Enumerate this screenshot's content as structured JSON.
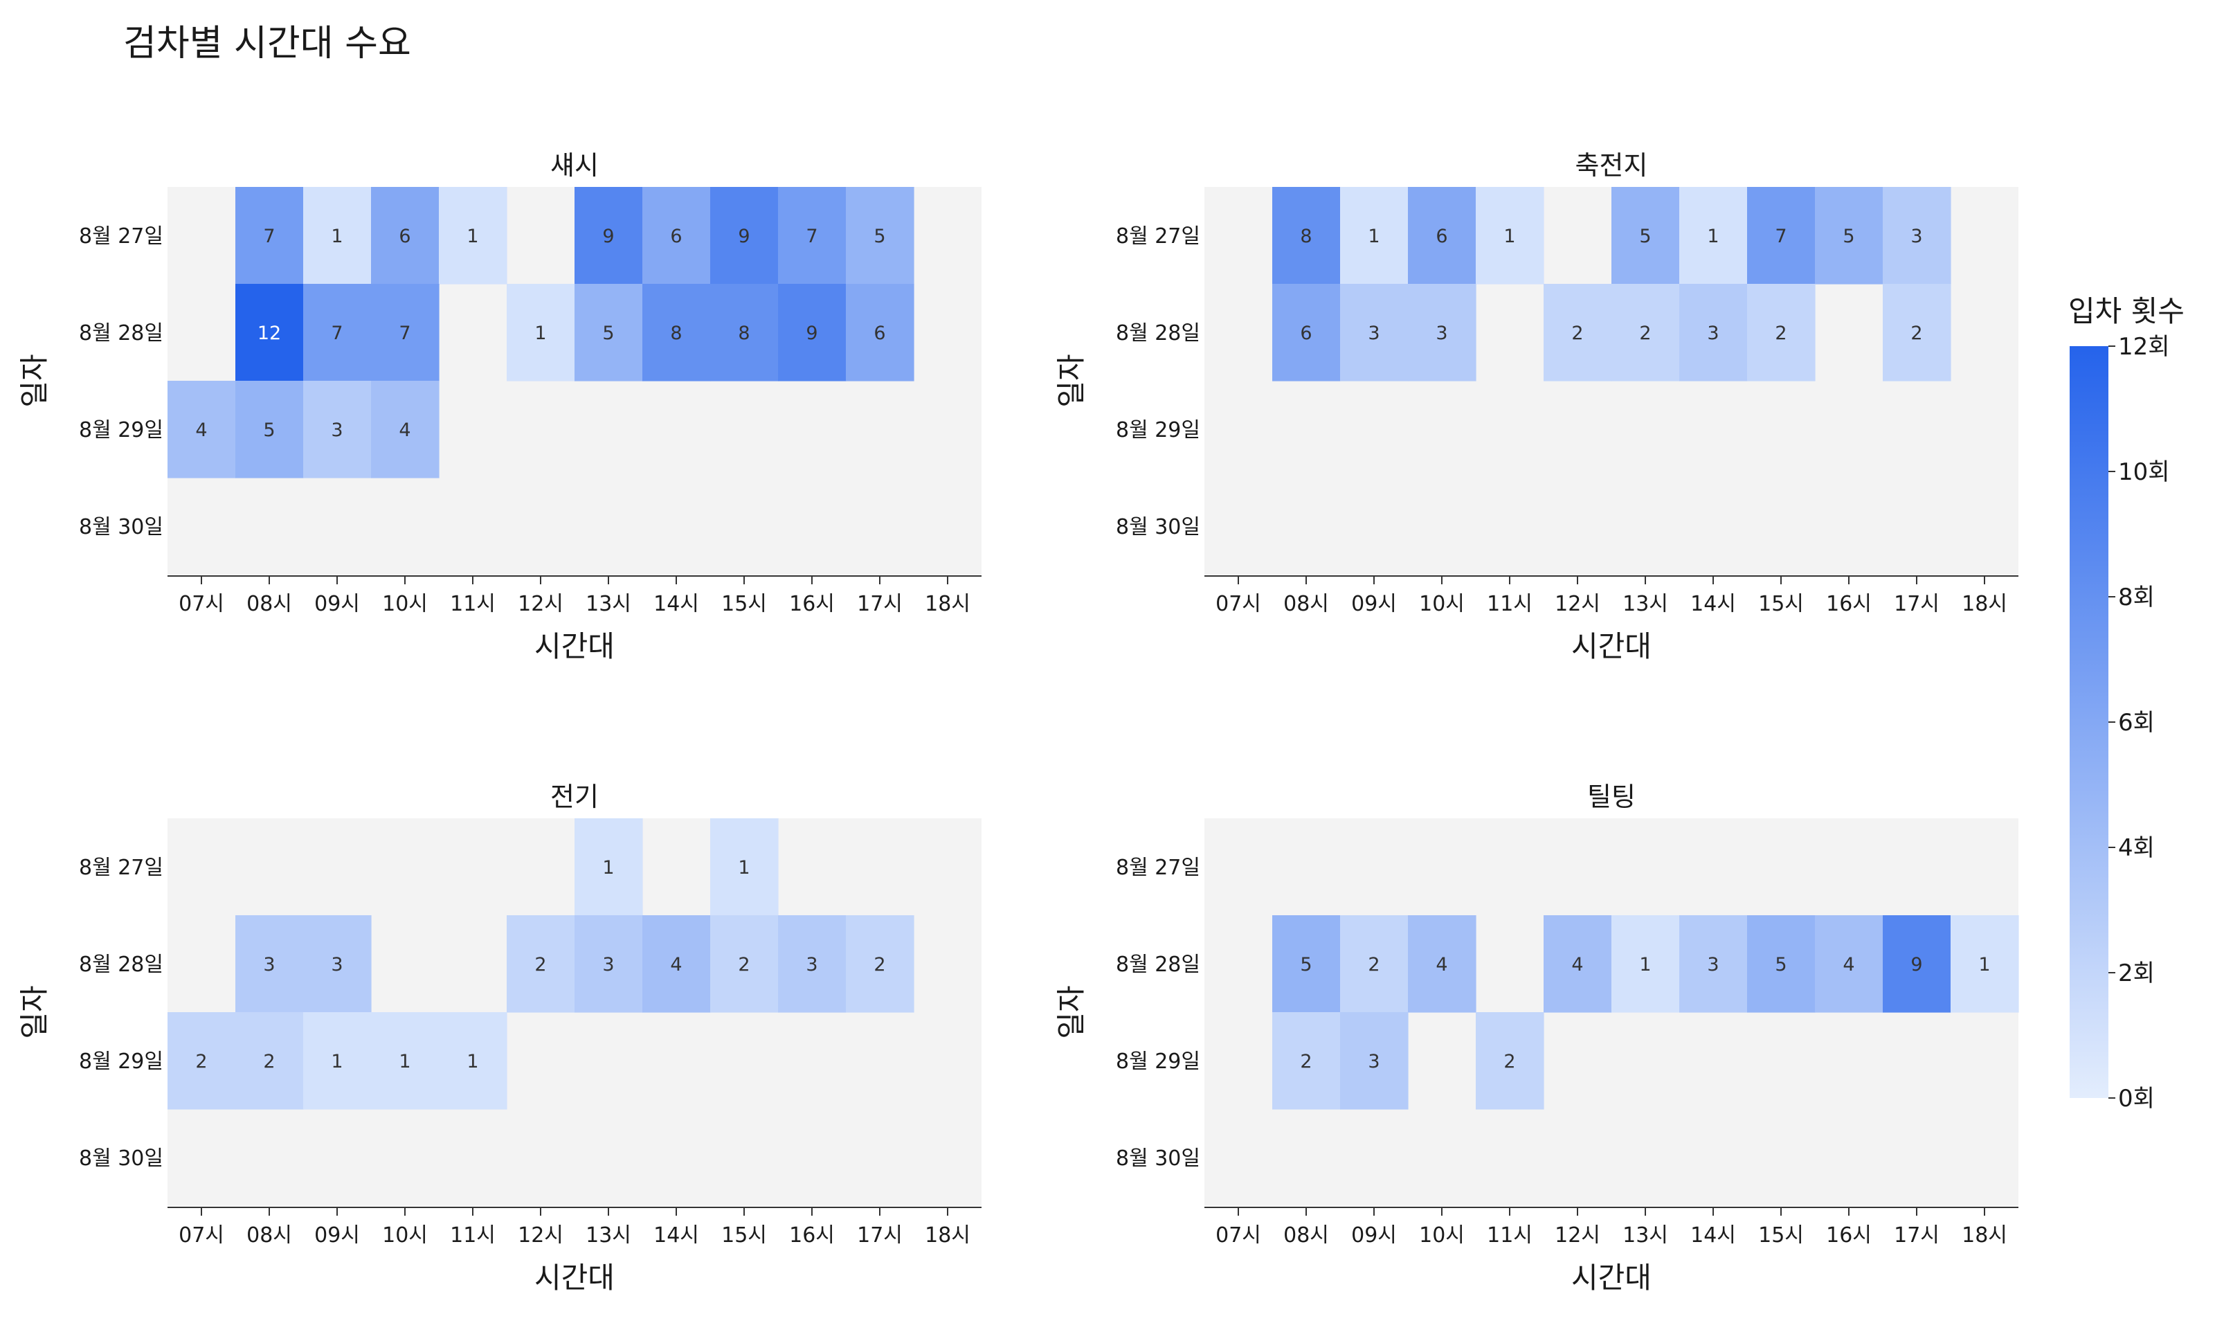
{
  "chart_data": {
    "type": "heatmap",
    "title": "검차별 시간대 수요",
    "rows": [
      "8월 27일",
      "8월 28일",
      "8월 29일",
      "8월 30일"
    ],
    "columns": [
      "07시",
      "08시",
      "09시",
      "10시",
      "11시",
      "12시",
      "13시",
      "14시",
      "15시",
      "16시",
      "17시",
      "18시"
    ],
    "xlabel": "시간대",
    "ylabel": "일자",
    "panels": [
      {
        "title": "섀시",
        "values": [
          [
            null,
            7,
            1,
            6,
            1,
            null,
            9,
            6,
            9,
            7,
            5,
            null
          ],
          [
            null,
            12,
            7,
            7,
            null,
            1,
            5,
            8,
            8,
            9,
            6,
            null
          ],
          [
            4,
            5,
            3,
            4,
            null,
            null,
            null,
            null,
            null,
            null,
            null,
            null
          ],
          [
            null,
            null,
            null,
            null,
            null,
            null,
            null,
            null,
            null,
            null,
            null,
            null
          ]
        ]
      },
      {
        "title": "축전지",
        "values": [
          [
            null,
            8,
            1,
            6,
            1,
            null,
            5,
            1,
            7,
            5,
            3,
            null
          ],
          [
            null,
            6,
            3,
            3,
            null,
            2,
            2,
            3,
            2,
            null,
            2,
            null
          ],
          [
            null,
            null,
            null,
            null,
            null,
            null,
            null,
            null,
            null,
            null,
            null,
            null
          ],
          [
            null,
            null,
            null,
            null,
            null,
            null,
            null,
            null,
            null,
            null,
            null,
            null
          ]
        ]
      },
      {
        "title": "전기",
        "values": [
          [
            null,
            null,
            null,
            null,
            null,
            null,
            1,
            null,
            1,
            null,
            null,
            null
          ],
          [
            null,
            3,
            3,
            null,
            null,
            2,
            3,
            4,
            2,
            3,
            2,
            null
          ],
          [
            2,
            2,
            1,
            1,
            1,
            null,
            null,
            null,
            null,
            null,
            null,
            null
          ],
          [
            null,
            null,
            null,
            null,
            null,
            null,
            null,
            null,
            null,
            null,
            null,
            null
          ]
        ]
      },
      {
        "title": "틸팅",
        "values": [
          [
            null,
            null,
            null,
            null,
            null,
            null,
            null,
            null,
            null,
            null,
            null,
            null
          ],
          [
            null,
            5,
            2,
            4,
            null,
            4,
            1,
            3,
            5,
            4,
            9,
            1
          ],
          [
            null,
            2,
            3,
            null,
            2,
            null,
            null,
            null,
            null,
            null,
            null,
            null
          ],
          [
            null,
            null,
            null,
            null,
            null,
            null,
            null,
            null,
            null,
            null,
            null,
            null
          ]
        ]
      }
    ],
    "colorbar": {
      "label": "입차 횟수",
      "range": [
        0,
        12
      ],
      "ticks": [
        "0회",
        "2회",
        "4회",
        "6회",
        "8회",
        "10회",
        "12회"
      ],
      "color_low": "#e3edfd",
      "color_high": "#2563eb"
    },
    "empty_cell_color": "#f3f3f3",
    "legend": "right"
  }
}
